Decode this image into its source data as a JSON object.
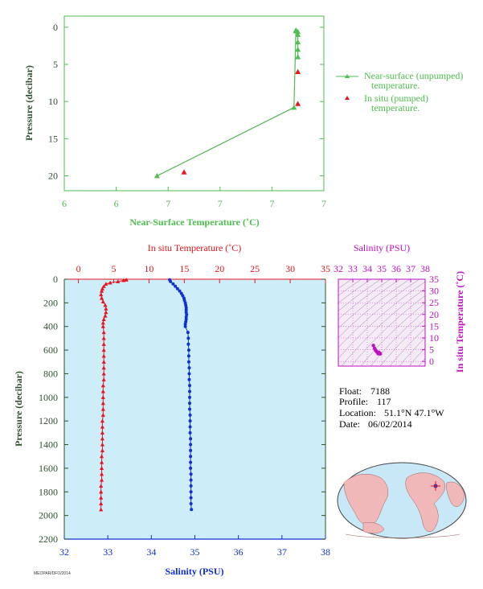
{
  "colors": {
    "green": "#4fbd4f",
    "axis_dark": "#2f4f2f",
    "red": "#e8141e",
    "blue": "#1030d0",
    "magenta": "#c010c0",
    "plot_bg": "#cdeef8",
    "map_land": "#f0b8b8",
    "map_ocean": "#c8e8f8"
  },
  "chart_data": [
    {
      "type": "line",
      "xlabel": "Near-Surface Temperature (˚C)",
      "ylabel": "Pressure (decibar)",
      "x_tick_labels": [
        "6",
        "6",
        "7",
        "7",
        "7",
        "7"
      ],
      "xlim": [
        6.0,
        7.0
      ],
      "ylim": [
        22,
        -1.5
      ],
      "y_ticks": [
        0,
        5,
        10,
        15,
        20
      ],
      "series": [
        {
          "name": "Near-surface (unpumped) temperature.",
          "legend_lines": [
            "Near-surface (unpumped)",
            "temperature."
          ],
          "color": "green",
          "marker": "triangle",
          "x": [
            6.21,
            6.92,
            6.93,
            6.93,
            6.94,
            6.94,
            6.94,
            6.94,
            6.94
          ],
          "y": [
            20.0,
            10.8,
            0.5,
            0.4,
            0.6,
            1.0,
            2.0,
            3.0,
            4.0
          ]
        },
        {
          "name": "In situ (pumped) temperature.",
          "legend_lines": [
            "In situ (pumped)",
            "temperature."
          ],
          "color": "red",
          "marker": "triangle",
          "x": [
            6.35,
            6.94,
            6.94
          ],
          "y": [
            19.5,
            10.3,
            6.0
          ]
        }
      ]
    },
    {
      "type": "scatter",
      "title_top": "In situ Temperature (˚C)",
      "xlabel": "Salinity (PSU)",
      "ylabel": "Pressure (decibar)",
      "temp_ticks": [
        0,
        5,
        10,
        15,
        20,
        25,
        30,
        35
      ],
      "temp_lim": [
        -2,
        35
      ],
      "sal_ticks": [
        32,
        33,
        34,
        35,
        36,
        37,
        38
      ],
      "sal_lim": [
        32,
        38
      ],
      "ylim": [
        2200,
        0
      ],
      "y_ticks": [
        0,
        200,
        400,
        600,
        800,
        1000,
        1200,
        1400,
        1600,
        1800,
        2000,
        2200
      ],
      "temperature_series": {
        "pressure": [
          5,
          10,
          20,
          30,
          40,
          60,
          80,
          100,
          130,
          160,
          190,
          220,
          250,
          280,
          310,
          340,
          370,
          400,
          450,
          500,
          550,
          600,
          650,
          700,
          750,
          800,
          850,
          900,
          950,
          1000,
          1050,
          1100,
          1150,
          1200,
          1250,
          1300,
          1350,
          1400,
          1450,
          1500,
          1550,
          1600,
          1650,
          1700,
          1750,
          1800,
          1850,
          1900,
          1950
        ],
        "temperature": [
          6.8,
          6.4,
          5.6,
          4.5,
          3.9,
          3.6,
          3.4,
          3.3,
          3.2,
          3.3,
          3.5,
          3.8,
          3.9,
          3.9,
          3.8,
          3.6,
          3.5,
          3.5,
          3.6,
          3.6,
          3.6,
          3.6,
          3.6,
          3.6,
          3.6,
          3.6,
          3.6,
          3.5,
          3.5,
          3.5,
          3.5,
          3.5,
          3.5,
          3.4,
          3.4,
          3.4,
          3.4,
          3.4,
          3.4,
          3.3,
          3.3,
          3.3,
          3.3,
          3.3,
          3.2,
          3.2,
          3.2,
          3.2,
          3.2
        ]
      },
      "salinity_series": {
        "pressure": [
          5,
          20,
          40,
          60,
          80,
          100,
          120,
          140,
          160,
          180,
          200,
          220,
          240,
          260,
          280,
          300,
          320,
          340,
          360,
          380,
          400,
          450,
          500,
          550,
          600,
          650,
          700,
          750,
          800,
          850,
          900,
          950,
          1000,
          1050,
          1100,
          1150,
          1200,
          1250,
          1300,
          1350,
          1400,
          1450,
          1500,
          1550,
          1600,
          1650,
          1700,
          1750,
          1800,
          1850,
          1900,
          1950
        ],
        "salinity": [
          34.42,
          34.44,
          34.5,
          34.55,
          34.6,
          34.65,
          34.69,
          34.72,
          34.75,
          34.76,
          34.78,
          34.79,
          34.8,
          34.8,
          34.8,
          34.81,
          34.8,
          34.8,
          34.79,
          34.78,
          34.78,
          34.84,
          34.85,
          34.85,
          34.86,
          34.86,
          34.86,
          34.87,
          34.87,
          34.87,
          34.88,
          34.88,
          34.88,
          34.88,
          34.88,
          34.89,
          34.89,
          34.89,
          34.89,
          34.9,
          34.9,
          34.9,
          34.9,
          34.9,
          34.9,
          34.91,
          34.91,
          34.91,
          34.91,
          34.91,
          34.91,
          34.92
        ]
      }
    },
    {
      "type": "scatter",
      "title_top": "Salinity (PSU)",
      "ylabel": "In situ Temperature (˚C)",
      "x_ticks": [
        32,
        33,
        34,
        35,
        36,
        37,
        38
      ],
      "x_tick_labels": [
        "32",
        "33",
        "34",
        "35",
        "36",
        "37",
        "38"
      ],
      "xlim": [
        32,
        38
      ],
      "y_ticks": [
        0,
        5,
        10,
        15,
        20,
        25,
        30,
        35
      ],
      "ylim": [
        -2,
        35
      ],
      "points_salinity": [
        34.42,
        34.5,
        34.6,
        34.7,
        34.78,
        34.8,
        34.75,
        34.82,
        34.85,
        34.87,
        34.9,
        34.65,
        34.55,
        34.88,
        34.78
      ],
      "points_temperature": [
        6.8,
        5.6,
        4.5,
        3.9,
        3.5,
        3.8,
        3.3,
        3.6,
        3.5,
        3.4,
        3.2,
        4.2,
        5.0,
        3.3,
        3.9
      ]
    }
  ],
  "info": {
    "float_label": "Float:",
    "float_value": "7188",
    "profile_label": "Profile:",
    "profile_value": "117",
    "location_label": "Location:",
    "location_value": "51.1°N  47.1°W",
    "date_label": "Date:",
    "date_value": "06/02/2014"
  },
  "footer_text": "MEOPAR/DFO/2014"
}
